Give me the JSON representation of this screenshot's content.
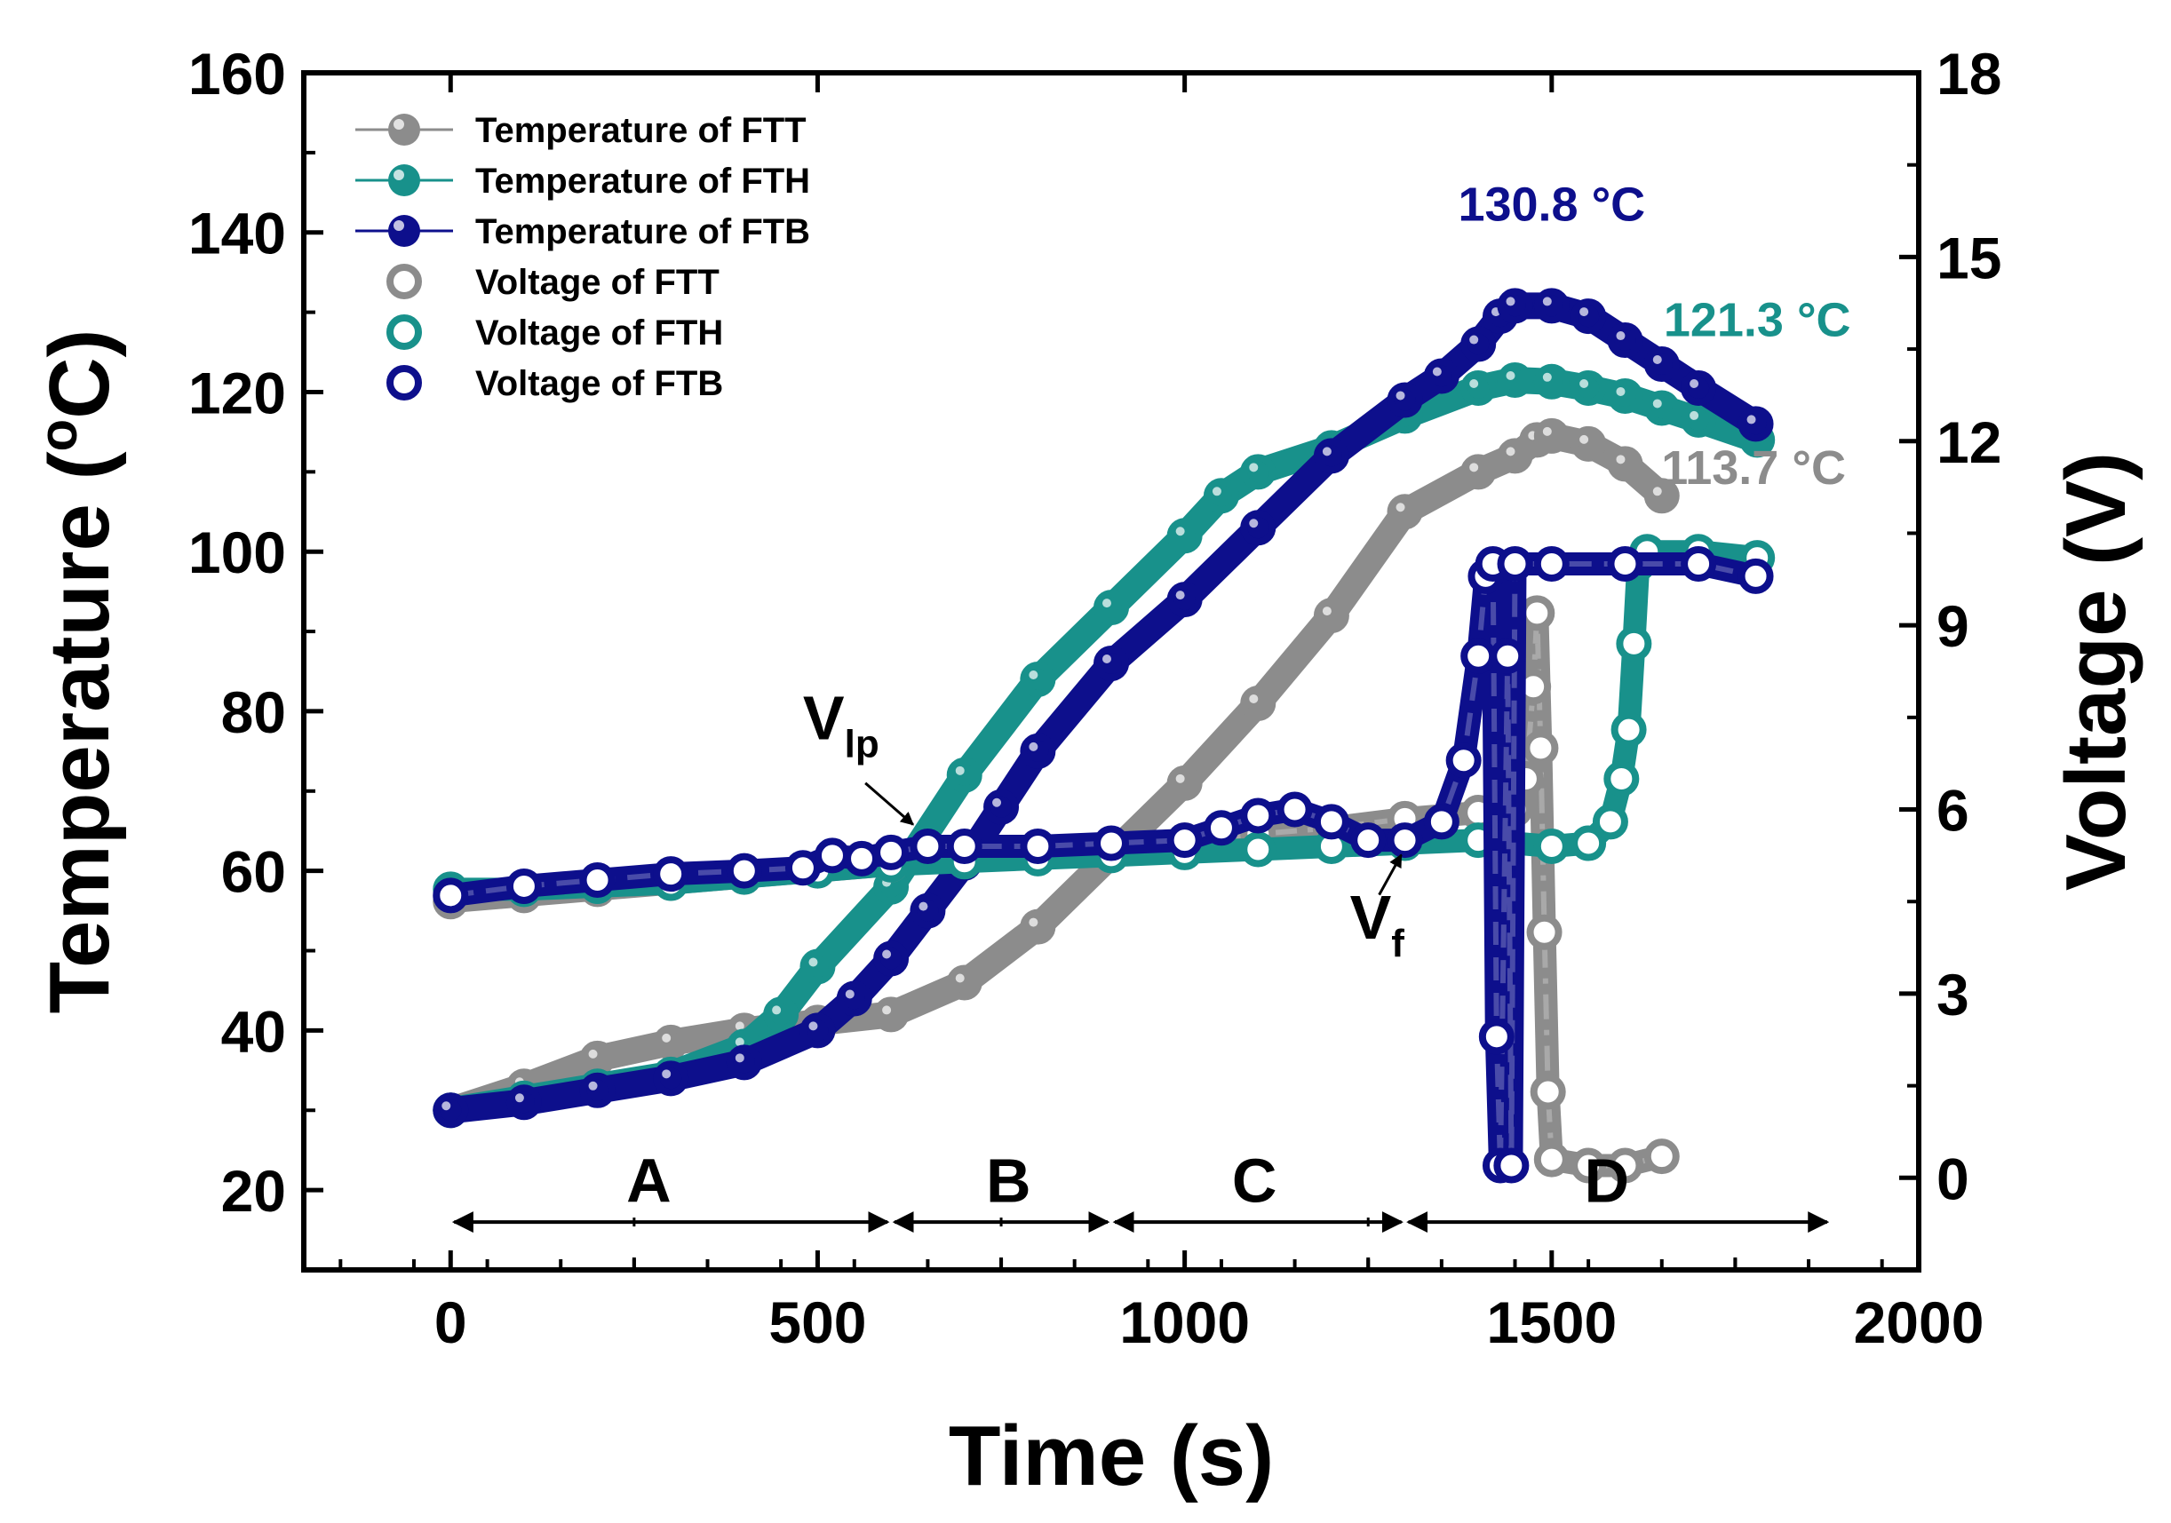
{
  "chart_data": {
    "type": "line",
    "title": "",
    "xlabel": "Time (s)",
    "ylabel": "Temperature (oC)",
    "ylabel_main": "Temperature (",
    "ylabel_sup": "o",
    "ylabel_tail": "C)",
    "y2label": "Voltage (V)",
    "xlim": [
      -200,
      2000
    ],
    "ylim": [
      10,
      160
    ],
    "y2lim": [
      -1.5,
      18
    ],
    "xticks": [
      "0",
      "500",
      "1000",
      "1500",
      "2000"
    ],
    "xtick_values": [
      0,
      500,
      1000,
      1500,
      2000
    ],
    "yticks": [
      "20",
      "40",
      "60",
      "80",
      "100",
      "120",
      "140",
      "160"
    ],
    "ytick_values": [
      20,
      40,
      60,
      80,
      100,
      120,
      140,
      160
    ],
    "y2ticks": [
      "0",
      "3",
      "6",
      "9",
      "12",
      "15",
      "18"
    ],
    "y2tick_values": [
      0,
      3,
      6,
      9,
      12,
      15,
      18
    ],
    "legend_position": "top-left",
    "colors": {
      "ftt": "#8c8c8c",
      "fth": "#18918b",
      "ftb": "#0d0f8c",
      "axis": "#000000"
    },
    "series": [
      {
        "name": "Temperature of  FTT",
        "axis": "left",
        "color": "#8c8c8c",
        "style": "solid",
        "marker": "filled",
        "x": [
          0,
          100,
          200,
          300,
          400,
          500,
          600,
          700,
          800,
          900,
          1000,
          1100,
          1200,
          1300,
          1400,
          1450,
          1480,
          1500,
          1550,
          1600,
          1650
        ],
        "y": [
          30,
          33,
          36.5,
          38.5,
          40,
          41,
          42,
          46,
          53,
          62,
          71,
          81,
          92,
          105,
          110,
          112,
          114,
          114.5,
          113.5,
          111,
          107
        ]
      },
      {
        "name": "Temperature of  FTH",
        "axis": "left",
        "color": "#18918b",
        "style": "solid",
        "marker": "filled",
        "x": [
          0,
          100,
          200,
          300,
          400,
          450,
          500,
          600,
          700,
          800,
          900,
          1000,
          1050,
          1100,
          1200,
          1300,
          1400,
          1450,
          1500,
          1550,
          1600,
          1650,
          1700,
          1780
        ],
        "y": [
          30,
          31.5,
          33,
          34.5,
          38,
          42,
          48,
          58,
          72,
          84,
          93,
          102,
          107,
          110,
          113,
          117,
          120.5,
          121.5,
          121.3,
          120.5,
          119.5,
          118,
          116.5,
          114
        ]
      },
      {
        "name": "Temperature of  FTB",
        "axis": "left",
        "color": "#0d0f8c",
        "style": "solid",
        "marker": "filled",
        "x": [
          0,
          100,
          200,
          300,
          400,
          500,
          550,
          600,
          650,
          700,
          750,
          800,
          900,
          1000,
          1100,
          1200,
          1300,
          1350,
          1400,
          1430,
          1450,
          1500,
          1550,
          1600,
          1650,
          1700,
          1778
        ],
        "y": [
          30,
          31,
          32.5,
          34,
          36,
          40,
          44,
          49,
          55,
          61,
          68,
          75,
          86,
          94,
          103,
          112,
          119,
          122,
          126,
          129.5,
          130.8,
          130.8,
          129.5,
          126.5,
          123.5,
          120.5,
          116
        ]
      },
      {
        "name": "Voltage of  FTT",
        "axis": "right",
        "color": "#8c8c8c",
        "style": "dashdot",
        "marker": "open",
        "x": [
          0,
          100,
          200,
          300,
          400,
          500,
          600,
          700,
          800,
          900,
          1000,
          1100,
          1200,
          1300,
          1400,
          1450,
          1465,
          1475,
          1480,
          1485,
          1490,
          1495,
          1500,
          1550,
          1600,
          1650
        ],
        "y": [
          4.5,
          4.6,
          4.7,
          4.8,
          4.9,
          5.0,
          5.1,
          5.2,
          5.3,
          5.4,
          5.5,
          5.6,
          5.7,
          5.85,
          5.95,
          6.0,
          6.5,
          8.0,
          9.2,
          7.0,
          4.0,
          1.4,
          0.3,
          0.2,
          0.2,
          0.35
        ]
      },
      {
        "name": "Voltage of  FTH",
        "axis": "right",
        "color": "#18918b",
        "style": "solid",
        "marker": "open",
        "x": [
          0,
          100,
          200,
          300,
          400,
          500,
          600,
          700,
          800,
          900,
          1000,
          1100,
          1200,
          1300,
          1400,
          1500,
          1550,
          1580,
          1595,
          1605,
          1612,
          1618,
          1630,
          1700,
          1780
        ],
        "y": [
          4.7,
          4.7,
          4.75,
          4.8,
          4.9,
          5.0,
          5.1,
          5.15,
          5.2,
          5.25,
          5.3,
          5.35,
          5.4,
          5.45,
          5.5,
          5.4,
          5.45,
          5.8,
          6.5,
          7.3,
          8.7,
          10.0,
          10.2,
          10.2,
          10.1
        ]
      },
      {
        "name": "Voltage of  FTB",
        "axis": "right",
        "color": "#0d0f8c",
        "style": "dash",
        "marker": "open",
        "x": [
          0,
          100,
          200,
          300,
          400,
          480,
          520,
          560,
          600,
          650,
          700,
          800,
          900,
          1000,
          1050,
          1100,
          1150,
          1200,
          1250,
          1300,
          1350,
          1380,
          1400,
          1410,
          1420,
          1425,
          1430,
          1440,
          1445,
          1450,
          1500,
          1600,
          1700,
          1778
        ],
        "y": [
          4.6,
          4.75,
          4.85,
          4.95,
          5.0,
          5.05,
          5.25,
          5.2,
          5.3,
          5.4,
          5.4,
          5.4,
          5.45,
          5.5,
          5.7,
          5.9,
          6.0,
          5.8,
          5.5,
          5.5,
          5.8,
          6.8,
          8.5,
          9.8,
          10.0,
          2.3,
          0.2,
          8.5,
          0.2,
          10.0,
          10.0,
          10.0,
          10.0,
          9.8
        ]
      }
    ],
    "region_labels": [
      {
        "label": "A",
        "x": 270
      },
      {
        "label": "B",
        "x": 760
      },
      {
        "label": "C",
        "x": 1095
      },
      {
        "label": "D",
        "x": 1575
      }
    ],
    "region_arrows": [
      [
        0,
        600
      ],
      [
        600,
        900
      ],
      [
        900,
        1300
      ],
      [
        1300,
        1880
      ]
    ],
    "region_arrow_y": 16,
    "annotations": [
      {
        "text": "130.8 °C",
        "x": 1500,
        "y": 141.5,
        "color": "#0d0f8c",
        "anchor": "middle"
      },
      {
        "text": "121.3 °C",
        "x": 1780,
        "y": 127,
        "color": "#18918b",
        "anchor": "middle"
      },
      {
        "text": "113.7 °C",
        "x": 1775,
        "y": 108.5,
        "color": "#8c8c8c",
        "anchor": "middle"
      }
    ],
    "vlp": {
      "main": "V",
      "sub": "lp",
      "x": 480,
      "y": 76.5,
      "arrow_from": [
        565,
        71
      ],
      "arrow_to": [
        630,
        65.8
      ]
    },
    "vf": {
      "main": "V",
      "sub": "f",
      "x": 1225,
      "y": 51.5,
      "arrow_from": [
        1265,
        57
      ],
      "arrow_to": [
        1295,
        62
      ]
    }
  }
}
